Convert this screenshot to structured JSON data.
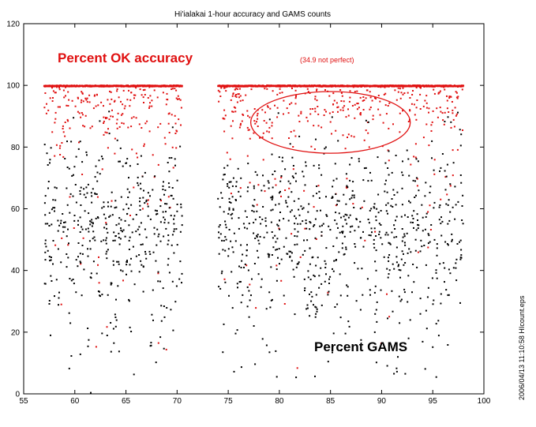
{
  "chart_data": {
    "type": "scatter",
    "title": "Hi'ialakai 1-hour accuracy and GAMS counts",
    "xlabel": "",
    "ylabel": "",
    "xlim": [
      55,
      100
    ],
    "ylim": [
      0,
      120
    ],
    "x_ticks": [
      55,
      60,
      65,
      70,
      75,
      80,
      85,
      90,
      95,
      100
    ],
    "y_ticks": [
      0,
      20,
      40,
      60,
      80,
      100,
      120
    ],
    "grid": false,
    "colors": {
      "accuracy": "#e01010",
      "gams": "#000000"
    },
    "series": [
      {
        "name": "Percent OK accuracy",
        "color": "#e01010",
        "mode": "generated-cloud-plus-100-line"
      },
      {
        "name": "Percent GAMS",
        "color": "#000000",
        "mode": "generated-cloud"
      }
    ],
    "annotations": {
      "accuracy_label": "Percent OK accuracy",
      "not_perfect": "(34.9 not perfect)",
      "gams_label": "Percent GAMS"
    },
    "highlight_ellipse": {
      "cx": 85,
      "cy": 88,
      "rx": 7.8,
      "ry": 10
    },
    "side_label": "2006/04/13 11:10:58   HIcount.eps"
  }
}
